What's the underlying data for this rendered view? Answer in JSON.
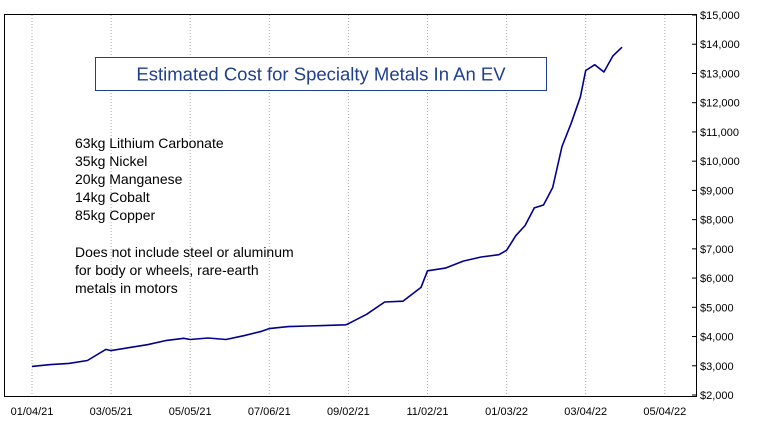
{
  "chart_data": {
    "type": "line",
    "title": "Estimated Cost for Specialty Metals In An EV",
    "xlabel": "",
    "ylabel": "",
    "x_ticks": [
      "01/04/21",
      "03/05/21",
      "05/05/21",
      "07/06/21",
      "09/02/21",
      "11/02/21",
      "01/03/22",
      "03/04/22",
      "05/04/22"
    ],
    "y_ticks": [
      "$2,000",
      "$3,000",
      "$4,000",
      "$5,000",
      "$6,000",
      "$7,000",
      "$8,000",
      "$9,000",
      "$10,000",
      "$11,000",
      "$12,000",
      "$13,000",
      "$14,000",
      "$15,000"
    ],
    "ylim": [
      2000,
      15000
    ],
    "xlim": [
      "01/04/21",
      "05/04/22"
    ],
    "grid": {
      "vertical": true,
      "horizontal": false
    },
    "y_axis_side": "right",
    "line_color": "#00008b",
    "title_color": "#1f3f8f",
    "annotations": [
      "63kg Lithium Carbonate",
      "35kg Nickel",
      "20kg Manganese",
      "14kg Cobalt",
      "85kg Copper",
      "Does not include steel or aluminum",
      "for body or wheels, rare-earth",
      "metals in motors"
    ],
    "series": [
      {
        "x": [
          "01/04/21",
          "01/18/21",
          "02/01/21",
          "02/15/21",
          "03/01/21",
          "03/05/21",
          "03/19/21",
          "04/02/21",
          "04/16/21",
          "04/30/21",
          "05/05/21",
          "05/19/21",
          "06/02/21",
          "06/16/21",
          "06/30/21",
          "07/06/21",
          "07/20/21",
          "08/03/21",
          "08/17/21",
          "08/31/21",
          "09/02/21",
          "09/16/21",
          "09/30/21",
          "10/14/21",
          "10/28/21",
          "11/02/21",
          "11/16/21",
          "11/30/21",
          "12/14/21",
          "12/28/21",
          "01/03/22",
          "01/10/22",
          "01/17/22",
          "01/24/22",
          "01/31/22",
          "02/07/22",
          "02/14/22",
          "02/21/22",
          "02/28/22",
          "03/04/22",
          "03/11/22",
          "03/18/22",
          "03/25/22",
          "04/01/22"
        ],
        "values": [
          2980,
          3040,
          3080,
          3180,
          3560,
          3520,
          3620,
          3720,
          3860,
          3940,
          3900,
          3950,
          3900,
          4030,
          4180,
          4270,
          4340,
          4360,
          4380,
          4400,
          4440,
          4760,
          5180,
          5210,
          5680,
          6250,
          6340,
          6580,
          6720,
          6800,
          6950,
          7450,
          7800,
          8400,
          8500,
          9100,
          10500,
          11300,
          12200,
          13100,
          13300,
          13050,
          13600,
          13900
        ]
      }
    ]
  }
}
